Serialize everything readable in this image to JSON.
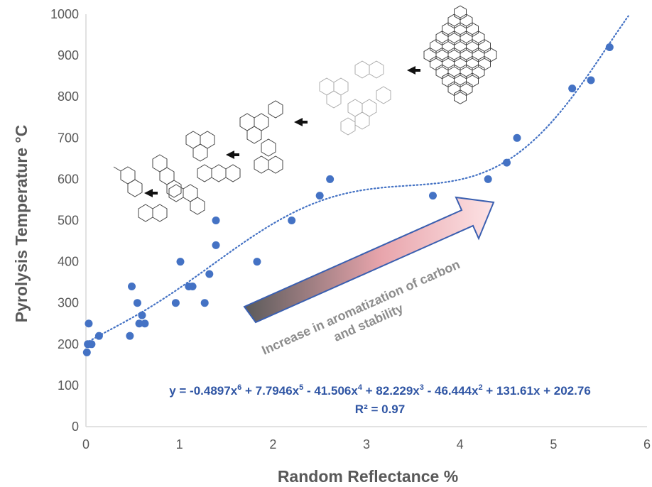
{
  "chart_data": {
    "type": "scatter",
    "xlabel": "Random Reflectance %",
    "ylabel": "Pyrolysis Temperature °C",
    "xlim": [
      0,
      6
    ],
    "ylim": [
      0,
      1000
    ],
    "x_ticks": [
      "0",
      "1",
      "2",
      "3",
      "4",
      "5",
      "6"
    ],
    "y_ticks": [
      "0",
      "100",
      "200",
      "300",
      "400",
      "500",
      "600",
      "700",
      "800",
      "900",
      "1000"
    ],
    "grid": false,
    "point_color": "#4472c4",
    "trendline": {
      "kind": "polynomial-order-6",
      "style": "dotted",
      "color": "#4472c4",
      "coefficients_high_to_low": [
        -0.4897,
        7.7946,
        -41.506,
        82.229,
        -46.444,
        131.61,
        202.76
      ],
      "r2": 0.97
    },
    "points": [
      {
        "x": 0.01,
        "y": 180
      },
      {
        "x": 0.02,
        "y": 200
      },
      {
        "x": 0.03,
        "y": 250
      },
      {
        "x": 0.06,
        "y": 200
      },
      {
        "x": 0.14,
        "y": 220
      },
      {
        "x": 0.47,
        "y": 220
      },
      {
        "x": 0.49,
        "y": 340
      },
      {
        "x": 0.55,
        "y": 300
      },
      {
        "x": 0.57,
        "y": 250
      },
      {
        "x": 0.6,
        "y": 270
      },
      {
        "x": 0.63,
        "y": 250
      },
      {
        "x": 0.96,
        "y": 300
      },
      {
        "x": 1.01,
        "y": 400
      },
      {
        "x": 1.1,
        "y": 340
      },
      {
        "x": 1.14,
        "y": 340
      },
      {
        "x": 1.27,
        "y": 300
      },
      {
        "x": 1.32,
        "y": 370
      },
      {
        "x": 1.39,
        "y": 440
      },
      {
        "x": 1.39,
        "y": 500
      },
      {
        "x": 1.83,
        "y": 400
      },
      {
        "x": 2.2,
        "y": 500
      },
      {
        "x": 2.5,
        "y": 560
      },
      {
        "x": 2.61,
        "y": 600
      },
      {
        "x": 3.71,
        "y": 560
      },
      {
        "x": 4.3,
        "y": 600
      },
      {
        "x": 4.5,
        "y": 640
      },
      {
        "x": 4.61,
        "y": 700
      },
      {
        "x": 5.2,
        "y": 820
      },
      {
        "x": 5.4,
        "y": 840
      },
      {
        "x": 5.6,
        "y": 920
      }
    ],
    "annotations": {
      "equation_prefix": "y = -0.4897x",
      "equation_terms": [
        {
          "exp": "6",
          "text": " + 7.7946x"
        },
        {
          "exp": "5",
          "text": " - 41.506x"
        },
        {
          "exp": "4",
          "text": " + 82.229x"
        },
        {
          "exp": "3",
          "text": " - 46.444x"
        },
        {
          "exp": "2",
          "text": " + 131.61x + 202.76"
        }
      ],
      "r2_text": "R² = 0.97",
      "arrow_label_line1": "Increase in aromatization of carbon",
      "arrow_label_line2": "and stability"
    }
  },
  "colors": {
    "axis": "#d9d9d9",
    "text": "#595959",
    "equation": "#2f55a4",
    "arrow_start": "#5a5a5a",
    "arrow_end": "#fbd3d6",
    "arrow_stroke": "#3a5fb0"
  }
}
